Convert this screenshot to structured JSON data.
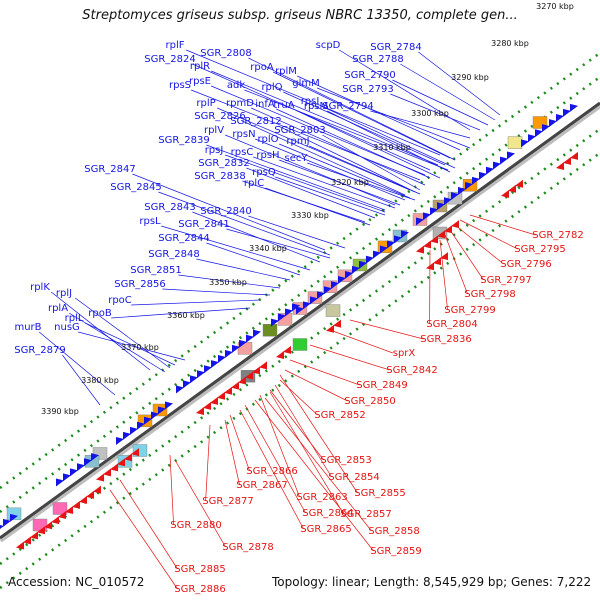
{
  "title": "Streptomyces griseus subsp. griseus NBRC 13350, complete gen...",
  "accession": "Accession: NC_010572",
  "topology": "Topology: linear; Length: 8,545,929 bp; Genes: 7,222",
  "colors": {
    "forward": "#1414e6",
    "reverse": "#e61414",
    "dots": "#1a8a1a",
    "backbone": "#444444"
  },
  "kbp_ticks": [
    "3270 kbp",
    "3280 kbp",
    "3290 kbp",
    "3300 kbp",
    "3310 kbp",
    "3320 kbp",
    "3330 kbp",
    "3340 kbp",
    "3350 kbp",
    "3360 kbp",
    "3370 kbp",
    "3380 kbp",
    "3390 kbp"
  ],
  "forward_genes": [
    "rplF",
    "SGR_2808",
    "SGR_2824",
    "rplR",
    "rpoA",
    "rpsE",
    "adk",
    "rplM",
    "rpsS",
    "infA",
    "rplQ",
    "glmM",
    "rplP",
    "rpmD",
    "truA",
    "rpsI",
    "SGR_2826",
    "SGR_2812",
    "rpsM",
    "SGR_2803",
    "rplV",
    "rpsN",
    "SGR_2839",
    "rplO",
    "rpsJ",
    "rpsC",
    "rpmJ",
    "rpsH",
    "secY",
    "SGR_2832",
    "rplC",
    "rpsQ",
    "SGR_2838",
    "SGR_2847",
    "SGR_2845",
    "SGR_2843",
    "SGR_2840",
    "rpsL",
    "SGR_2841",
    "SGR_2844",
    "SGR_2848",
    "SGR_2851",
    "rplK",
    "SGR_2856",
    "rplJ",
    "rpoC",
    "rplA",
    "rplL",
    "rpoB",
    "murB",
    "nusG",
    "SGR_2879",
    "scpD",
    "SGR_2784",
    "SGR_2788",
    "SGR_2790",
    "SGR_2793",
    "SGR_2794"
  ],
  "reverse_genes": [
    "SGR_2782",
    "SGR_2795",
    "SGR_2796",
    "SGR_2797",
    "SGR_2798",
    "SGR_2799",
    "SGR_2804",
    "SGR_2836",
    "sprX",
    "SGR_2842",
    "SGR_2849",
    "SGR_2850",
    "SGR_2852",
    "SGR_2853",
    "SGR_2854",
    "SGR_2866",
    "SGR_2855",
    "SGR_2867",
    "SGR_2863",
    "SGR_2877",
    "SGR_2857",
    "SGR_2864",
    "SGR_2865",
    "SGR_2858",
    "SGR_2880",
    "SGR_2859",
    "SGR_2878",
    "SGR_2885",
    "SGR_2886"
  ]
}
